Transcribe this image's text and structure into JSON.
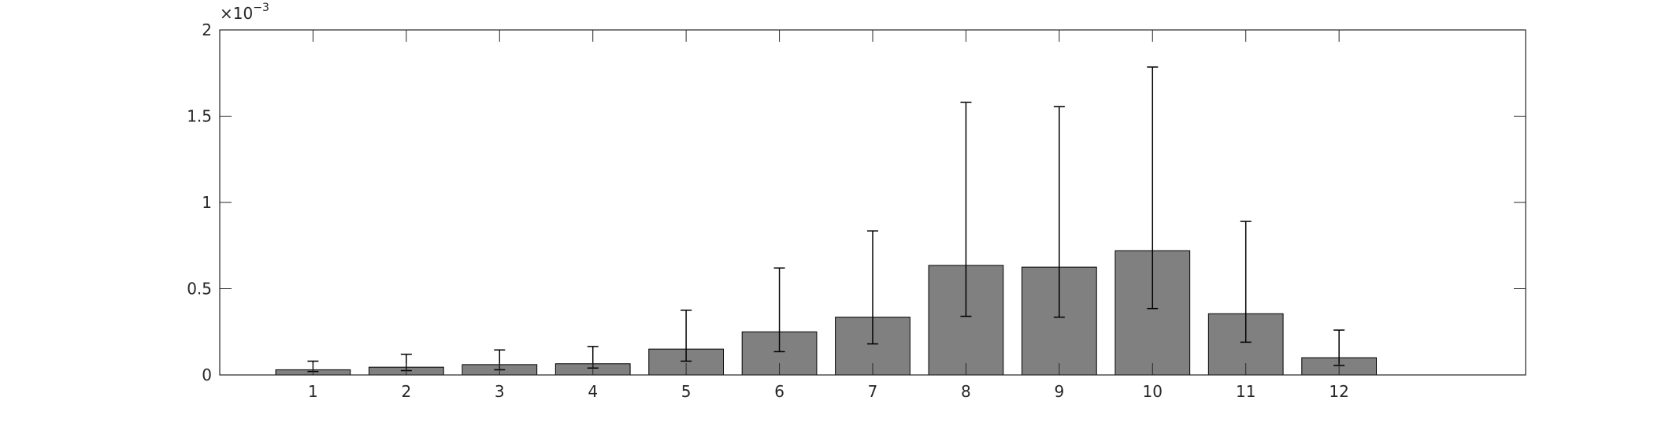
{
  "chart_data": {
    "type": "bar",
    "title": "",
    "xlabel": "",
    "ylabel": "",
    "categories": [
      "1",
      "2",
      "3",
      "4",
      "5",
      "6",
      "7",
      "8",
      "9",
      "10",
      "11",
      "12"
    ],
    "x_range": [
      0,
      14
    ],
    "ylim": [
      0,
      0.002
    ],
    "yticks": [
      0,
      0.0005,
      0.001,
      0.0015,
      0.002
    ],
    "ytick_labels": [
      "0",
      "0.5",
      "1",
      "1.5",
      "2"
    ],
    "y_exponent_label": {
      "base": "×10",
      "exponent": "−3"
    },
    "grid": false,
    "legend": "none",
    "series": [
      {
        "values": [
          3e-05,
          4.5e-05,
          6e-05,
          6.5e-05,
          0.00015,
          0.00025,
          0.000335,
          0.000635,
          0.000625,
          0.00072,
          0.000355,
          0.0001
        ],
        "err_low": [
          2e-05,
          2.5e-05,
          3e-05,
          4e-05,
          8e-05,
          0.000135,
          0.00018,
          0.00034,
          0.000335,
          0.000385,
          0.00019,
          5.5e-05
        ],
        "err_high": [
          8e-05,
          0.00012,
          0.000145,
          0.000165,
          0.000375,
          0.00062,
          0.000835,
          0.00158,
          0.001555,
          0.001785,
          0.00089,
          0.00026
        ]
      }
    ],
    "colors": {
      "bar_fill": "#808080",
      "bar_edge": "#000000",
      "error_bar": "#000000",
      "axes": "#262626",
      "background": "#ffffff"
    }
  }
}
